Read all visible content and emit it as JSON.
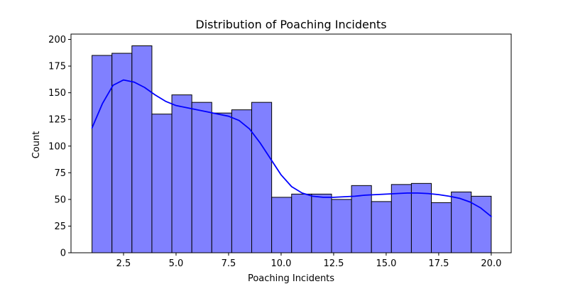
{
  "chart_data": {
    "type": "bar",
    "title": "Distribution of Poaching Incidents",
    "xlabel": "Poaching Incidents",
    "ylabel": "Count",
    "xlim": [
      0.0,
      20.95
    ],
    "ylim": [
      0,
      205
    ],
    "xticks": [
      2.5,
      5.0,
      7.5,
      10.0,
      12.5,
      15.0,
      17.5,
      20.0
    ],
    "yticks": [
      0,
      25,
      50,
      75,
      100,
      125,
      150,
      175,
      200
    ],
    "bin_range": [
      1.0,
      20.0
    ],
    "bin_count": 20,
    "values": [
      185,
      187,
      194,
      130,
      148,
      141,
      131,
      134,
      141,
      52,
      55,
      55,
      50,
      63,
      48,
      64,
      65,
      47,
      57,
      53
    ],
    "kde_line": {
      "x": [
        1.0,
        1.5,
        2.0,
        2.5,
        3.0,
        3.5,
        4.0,
        4.5,
        5.0,
        5.5,
        6.0,
        6.5,
        7.0,
        7.5,
        8.0,
        8.5,
        9.0,
        9.5,
        10.0,
        10.5,
        11.0,
        11.5,
        12.0,
        12.5,
        13.0,
        13.5,
        14.0,
        14.5,
        15.0,
        15.5,
        16.0,
        16.5,
        17.0,
        17.5,
        18.0,
        18.5,
        19.0,
        19.5,
        20.0
      ],
      "y": [
        117,
        140,
        157,
        162,
        160,
        155,
        148,
        142,
        138,
        136,
        134,
        132,
        130,
        128,
        124,
        116,
        103,
        88,
        73,
        62,
        56,
        53,
        52,
        52,
        52.5,
        53,
        54,
        54.5,
        55,
        55.5,
        56,
        56,
        55.5,
        54.5,
        53,
        51,
        47.5,
        42,
        34
      ]
    },
    "bar_fill": "#8080ff",
    "bar_edge": "#000000",
    "kde_color": "#0000ff",
    "grid": false,
    "legend": "none"
  }
}
